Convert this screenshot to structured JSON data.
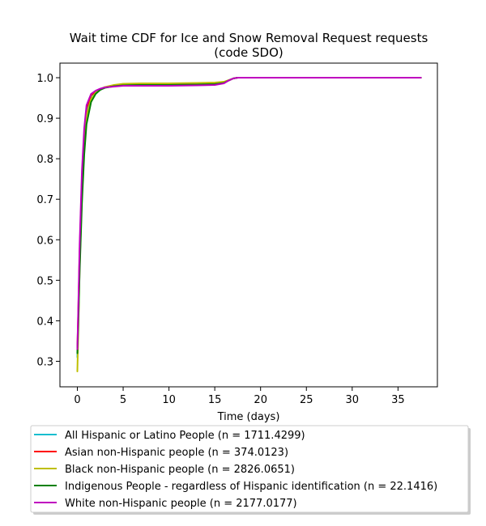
{
  "chart_data": {
    "type": "line",
    "title": "Wait time CDF for Ice and Snow Removal Request  requests",
    "subtitle": "(code SDO)",
    "xlabel": "Time (days)",
    "ylabel": "",
    "xlim": [
      -1.9,
      39.3
    ],
    "ylim": [
      0.237,
      1.036
    ],
    "xticks": [
      0,
      5,
      10,
      15,
      20,
      25,
      30,
      35
    ],
    "yticks": [
      0.3,
      0.4,
      0.5,
      0.6,
      0.7,
      0.8,
      0.9,
      1.0
    ],
    "xtick_labels": [
      "0",
      "5",
      "10",
      "15",
      "20",
      "25",
      "30",
      "35"
    ],
    "ytick_labels": [
      "0.3",
      "0.4",
      "0.5",
      "0.6",
      "0.7",
      "0.8",
      "0.9",
      "1.0"
    ],
    "grid": false,
    "legend_position": "below",
    "series": [
      {
        "name": "All Hispanic or Latino People (n = 1711.4299)",
        "color": "#17becf",
        "x": [
          0,
          0.1,
          0.25,
          0.5,
          0.75,
          1.0,
          1.5,
          2.0,
          2.5,
          3.0,
          4.0,
          5.0,
          7.0,
          10.0,
          13.0,
          15.0,
          16.0,
          16.5,
          17.0,
          17.5,
          18.0,
          20.0,
          25.0,
          30.0,
          35.0,
          37.5
        ],
        "y": [
          0.31,
          0.4,
          0.55,
          0.73,
          0.85,
          0.92,
          0.955,
          0.965,
          0.972,
          0.976,
          0.98,
          0.982,
          0.983,
          0.983,
          0.984,
          0.985,
          0.988,
          0.993,
          0.998,
          1.0,
          1.0,
          1.0,
          1.0,
          1.0,
          1.0,
          1.0
        ]
      },
      {
        "name": "Asian non-Hispanic people (n = 374.0123)",
        "color": "#ff0000",
        "x": [
          0,
          0.1,
          0.25,
          0.5,
          0.75,
          1.0,
          1.5,
          2.0,
          2.5,
          3.0,
          4.0,
          5.0,
          7.0,
          10.0,
          13.0,
          15.0,
          16.0,
          16.5,
          17.0,
          17.5,
          18.0,
          20.0,
          25.0,
          30.0,
          35.0,
          37.5
        ],
        "y": [
          0.33,
          0.42,
          0.57,
          0.75,
          0.86,
          0.925,
          0.957,
          0.966,
          0.972,
          0.976,
          0.979,
          0.981,
          0.982,
          0.982,
          0.983,
          0.984,
          0.987,
          0.993,
          0.998,
          1.0,
          1.0,
          1.0,
          1.0,
          1.0,
          1.0,
          1.0
        ]
      },
      {
        "name": "Black non-Hispanic people (n = 2826.0651)",
        "color": "#bfbf00",
        "x": [
          0,
          0.1,
          0.25,
          0.5,
          0.75,
          1.0,
          1.5,
          2.0,
          2.5,
          3.0,
          4.0,
          5.0,
          7.0,
          10.0,
          13.0,
          15.0,
          16.0,
          16.5,
          17.0,
          17.5,
          18.0,
          20.0,
          25.0,
          30.0,
          35.0,
          37.5
        ],
        "y": [
          0.275,
          0.37,
          0.53,
          0.71,
          0.835,
          0.905,
          0.947,
          0.963,
          0.972,
          0.977,
          0.982,
          0.985,
          0.986,
          0.986,
          0.987,
          0.988,
          0.99,
          0.994,
          0.998,
          1.0,
          1.0,
          1.0,
          1.0,
          1.0,
          1.0,
          1.0
        ]
      },
      {
        "name": "Indigenous People - regardless of Hispanic identification (n = 22.1416)",
        "color": "#008000",
        "x": [
          0,
          0.1,
          0.25,
          0.5,
          0.75,
          1.0,
          1.5,
          2.0,
          2.5,
          3.0,
          4.0,
          5.0,
          7.0,
          10.0,
          13.0,
          15.0,
          16.0,
          16.5,
          17.0,
          17.5,
          18.0,
          20.0,
          25.0,
          30.0,
          35.0,
          37.5
        ],
        "y": [
          0.32,
          0.39,
          0.52,
          0.69,
          0.81,
          0.885,
          0.94,
          0.96,
          0.97,
          0.975,
          0.979,
          0.981,
          0.982,
          0.982,
          0.983,
          0.984,
          0.987,
          0.993,
          0.998,
          1.0,
          1.0,
          1.0,
          1.0,
          1.0,
          1.0,
          1.0
        ]
      },
      {
        "name": "White non-Hispanic people (n = 2177.0177)",
        "color": "#bf00bf",
        "x": [
          0,
          0.1,
          0.25,
          0.5,
          0.75,
          1.0,
          1.5,
          2.0,
          2.5,
          3.0,
          4.0,
          5.0,
          7.0,
          10.0,
          13.0,
          15.0,
          16.0,
          16.5,
          17.0,
          17.5,
          18.0,
          20.0,
          25.0,
          30.0,
          35.0,
          37.5
        ],
        "y": [
          0.33,
          0.43,
          0.59,
          0.77,
          0.875,
          0.932,
          0.96,
          0.968,
          0.973,
          0.976,
          0.978,
          0.98,
          0.98,
          0.98,
          0.981,
          0.982,
          0.986,
          0.993,
          0.998,
          1.0,
          1.0,
          1.0,
          1.0,
          1.0,
          1.0,
          1.0
        ]
      }
    ]
  }
}
